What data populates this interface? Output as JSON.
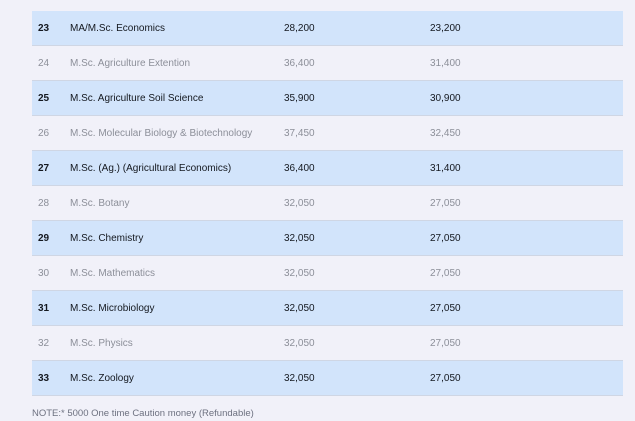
{
  "rows": [
    {
      "num": "23",
      "course": "MA/M.Sc. Economics",
      "fee1": "28,200",
      "fee2": "23,200"
    },
    {
      "num": "24",
      "course": "M.Sc. Agriculture Extention",
      "fee1": "36,400",
      "fee2": "31,400"
    },
    {
      "num": "25",
      "course": "M.Sc. Agriculture Soil Science",
      "fee1": "35,900",
      "fee2": "30,900"
    },
    {
      "num": "26",
      "course": "M.Sc. Molecular Biology & Biotechnology",
      "fee1": "37,450",
      "fee2": "32,450"
    },
    {
      "num": "27",
      "course": "M.Sc. (Ag.) (Agricultural Economics)",
      "fee1": "36,400",
      "fee2": "31,400"
    },
    {
      "num": "28",
      "course": "M.Sc. Botany",
      "fee1": "32,050",
      "fee2": "27,050"
    },
    {
      "num": "29",
      "course": "M.Sc. Chemistry",
      "fee1": "32,050",
      "fee2": "27,050"
    },
    {
      "num": "30",
      "course": "M.Sc. Mathematics",
      "fee1": "32,050",
      "fee2": "27,050"
    },
    {
      "num": "31",
      "course": "M.Sc. Microbiology",
      "fee1": "32,050",
      "fee2": "27,050"
    },
    {
      "num": "32",
      "course": "M.Sc. Physics",
      "fee1": "32,050",
      "fee2": "27,050"
    },
    {
      "num": "33",
      "course": "M.Sc. Zoology",
      "fee1": "32,050",
      "fee2": "27,050"
    }
  ],
  "note": "NOTE:* 5000 One time Caution money (Refundable)",
  "colors": {
    "highlight_row": "#d2e4fb",
    "plain_row": "#f1f1f9",
    "highlight_text": "#14181f",
    "plain_text": "#8c8f99"
  }
}
